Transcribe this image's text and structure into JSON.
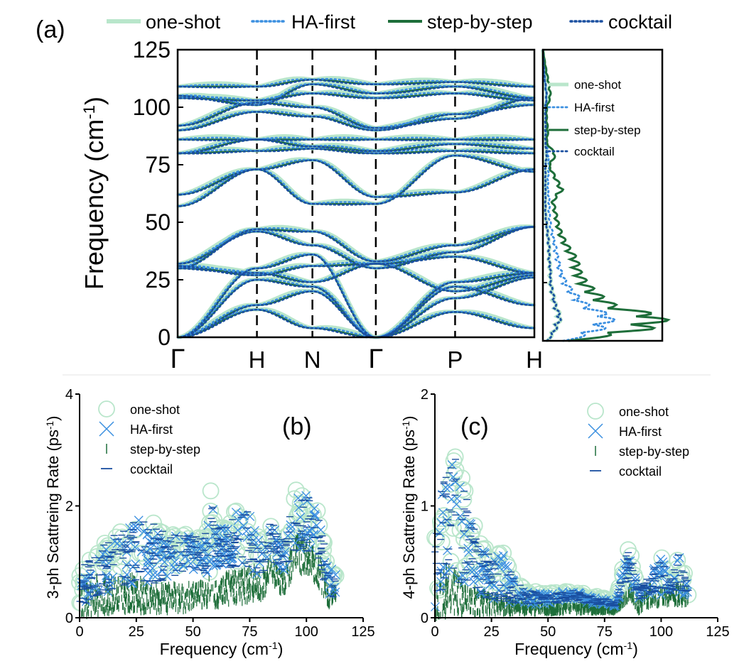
{
  "colors": {
    "one_shot": "#b9e6cb",
    "ha_first": "#3b8fe0",
    "step_by_step": "#1e6e3a",
    "cocktail": "#1a4fa0",
    "axis": "#000000"
  },
  "top_legend": {
    "panel_label": "(a)",
    "items": [
      "one-shot",
      "HA-first",
      "step-by-step",
      "cocktail"
    ]
  },
  "chart_data": [
    {
      "id": "a",
      "type": "line",
      "title": "(a)",
      "xlabel": "",
      "ylabel": "Frequency (cm",
      "ylabel_sup": "-1",
      "ylabel_close": ")",
      "ylim": [
        0,
        125
      ],
      "yticks": [
        0,
        25,
        50,
        75,
        100,
        125
      ],
      "xticks": [
        {
          "label": "Γ",
          "pos": 0,
          "serif": true
        },
        {
          "label": "H",
          "pos": 1,
          "serif": false
        },
        {
          "label": "N",
          "pos": 1.7,
          "serif": false
        },
        {
          "label": "Γ",
          "pos": 2.5,
          "serif": true
        },
        {
          "label": "P",
          "pos": 3.5,
          "serif": false
        },
        {
          "label": "H",
          "pos": 4.5,
          "serif": false
        }
      ],
      "xlim": [
        0,
        4.5
      ],
      "high_symmetry_lines": [
        1,
        1.7,
        2.5,
        3.5
      ],
      "series_names": [
        "one-shot",
        "HA-first",
        "step-by-step",
        "cocktail"
      ],
      "bands": [
        [
          0,
          12,
          4,
          0,
          11,
          4
        ],
        [
          0,
          14,
          20,
          0,
          22,
          14
        ],
        [
          0,
          25,
          22,
          0,
          17,
          26
        ],
        [
          0,
          30,
          36,
          0,
          24,
          28
        ],
        [
          32,
          46,
          40,
          30,
          37,
          48
        ],
        [
          30,
          47,
          46,
          33,
          40,
          48
        ],
        [
          31,
          27,
          31,
          32,
          35,
          28
        ],
        [
          30,
          28,
          24,
          32,
          20,
          27
        ],
        [
          57,
          73,
          77,
          61,
          63,
          73
        ],
        [
          62,
          73,
          58,
          58,
          79,
          72
        ],
        [
          80,
          81,
          82,
          80,
          81,
          80
        ],
        [
          80,
          86,
          83,
          81,
          84,
          82
        ],
        [
          86,
          86,
          86,
          86,
          86,
          86
        ],
        [
          90,
          98,
          96,
          90,
          97,
          101
        ],
        [
          92,
          102,
          100,
          91,
          95,
          104
        ],
        [
          104,
          103,
          106,
          104,
          106,
          103
        ],
        [
          105,
          101,
          110,
          106,
          109,
          104
        ],
        [
          109,
          109,
          112,
          110,
          111,
          109
        ]
      ]
    },
    {
      "id": "dos",
      "type": "line",
      "title": "",
      "legend": [
        "one-shot",
        "HA-first",
        "step-by-step",
        "cocktail"
      ],
      "ylim": [
        0,
        125
      ],
      "xlim": [
        0,
        1
      ],
      "freq": [
        0,
        5,
        10,
        15,
        20,
        25,
        30,
        35,
        40,
        45,
        50,
        55,
        60,
        65,
        70,
        75,
        80,
        85,
        90,
        95,
        100,
        105,
        110,
        115,
        125
      ],
      "series": [
        {
          "name": "one-shot",
          "values": [
            0.04,
            0.1,
            0.14,
            0.1,
            0.08,
            0.06,
            0.06,
            0.05,
            0.05,
            0.04,
            0.03,
            0.02,
            0.02,
            0.02,
            0.02,
            0.02,
            0.03,
            0.02,
            0.02,
            0.02,
            0.02,
            0.03,
            0.02,
            0.01,
            0
          ]
        },
        {
          "name": "HA-first",
          "values": [
            0.2,
            0.45,
            0.55,
            0.35,
            0.25,
            0.18,
            0.14,
            0.12,
            0.1,
            0.08,
            0.06,
            0.05,
            0.05,
            0.04,
            0.04,
            0.05,
            0.04,
            0.03,
            0.03,
            0.03,
            0.02,
            0.03,
            0.02,
            0.01,
            0
          ]
        },
        {
          "name": "step-by-step",
          "values": [
            0.25,
            0.8,
            0.95,
            0.55,
            0.42,
            0.33,
            0.28,
            0.26,
            0.2,
            0.15,
            0.12,
            0.1,
            0.08,
            0.15,
            0.1,
            0.05,
            0.1,
            0.03,
            0.04,
            0.03,
            0.03,
            0.06,
            0.05,
            0.03,
            0
          ]
        },
        {
          "name": "cocktail",
          "values": [
            0.04,
            0.1,
            0.14,
            0.1,
            0.08,
            0.06,
            0.06,
            0.05,
            0.05,
            0.04,
            0.03,
            0.02,
            0.02,
            0.02,
            0.02,
            0.02,
            0.03,
            0.02,
            0.02,
            0.02,
            0.02,
            0.03,
            0.02,
            0.01,
            0
          ]
        }
      ]
    },
    {
      "id": "b",
      "type": "scatter",
      "title": "(b)",
      "xlabel": "Frequency (cm",
      "xlabel_sup": "-1",
      "xlabel_close": ")",
      "ylabel": "3-ph Scattreing Rate (ps",
      "ylabel_sup": "-1",
      "ylabel_close": ")",
      "xlim": [
        0,
        125
      ],
      "ylim": [
        0,
        4
      ],
      "xticks": [
        0,
        25,
        50,
        75,
        100,
        125
      ],
      "yticks": [
        0,
        2,
        4
      ],
      "legend": [
        "one-shot",
        "HA-first",
        "step-by-step",
        "cocktail"
      ],
      "envelope": {
        "x": [
          0,
          5,
          10,
          15,
          20,
          25,
          30,
          35,
          40,
          45,
          50,
          55,
          58,
          60,
          65,
          70,
          75,
          80,
          85,
          90,
          95,
          100,
          105,
          110,
          113
        ],
        "upper": [
          0.9,
          1.1,
          1.3,
          1.5,
          1.6,
          1.8,
          1.85,
          1.6,
          1.5,
          1.5,
          1.5,
          1.4,
          2.4,
          1.6,
          1.7,
          2.0,
          1.9,
          1.4,
          1.8,
          1.3,
          2.3,
          2.3,
          1.9,
          1.0,
          0.8
        ],
        "lower": [
          0.2,
          0.3,
          0.4,
          0.5,
          0.5,
          0.6,
          0.6,
          0.6,
          0.7,
          0.8,
          0.8,
          0.8,
          0.8,
          0.9,
          0.9,
          0.9,
          0.8,
          0.7,
          1.0,
          0.8,
          1.2,
          1.2,
          1.0,
          0.3,
          0.4
        ],
        "step_upper": [
          0.5,
          0.7,
          0.8,
          0.7,
          0.7,
          0.8,
          0.6,
          0.6,
          0.6,
          0.6,
          0.6,
          0.7,
          0.8,
          0.6,
          0.8,
          0.8,
          0.9,
          0.9,
          1.1,
          0.8,
          1.5,
          1.5,
          1.2,
          0.6,
          0.5
        ],
        "step_lower": [
          0.0,
          0.05,
          0.05,
          0.1,
          0.1,
          0.1,
          0.1,
          0.1,
          0.1,
          0.1,
          0.15,
          0.2,
          0.2,
          0.2,
          0.25,
          0.25,
          0.3,
          0.3,
          0.6,
          0.4,
          0.8,
          0.8,
          0.6,
          0.2,
          0.3
        ]
      }
    },
    {
      "id": "c",
      "type": "scatter",
      "title": "(c)",
      "xlabel": "Frequency (cm",
      "xlabel_sup": "-1",
      "xlabel_close": ")",
      "ylabel": "4-ph Scattreing Rate (ps",
      "ylabel_sup": "-1",
      "ylabel_close": ")",
      "xlim": [
        0,
        125
      ],
      "ylim": [
        0,
        2
      ],
      "xticks": [
        0,
        25,
        50,
        75,
        100,
        125
      ],
      "yticks": [
        0,
        1,
        2
      ],
      "legend": [
        "one-shot",
        "HA-first",
        "step-by-step",
        "cocktail"
      ],
      "envelope": {
        "x": [
          0,
          3,
          6,
          9,
          12,
          15,
          20,
          25,
          30,
          35,
          40,
          50,
          60,
          70,
          80,
          85,
          87,
          90,
          95,
          100,
          105,
          108,
          112
        ],
        "upper": [
          0.8,
          1.2,
          1.4,
          1.45,
          1.3,
          1.0,
          0.7,
          0.55,
          0.6,
          0.35,
          0.25,
          0.22,
          0.25,
          0.2,
          0.15,
          0.65,
          0.55,
          0.25,
          0.4,
          0.55,
          0.4,
          0.6,
          0.3
        ],
        "lower": [
          0.05,
          0.2,
          0.3,
          0.35,
          0.3,
          0.3,
          0.2,
          0.15,
          0.15,
          0.12,
          0.12,
          0.12,
          0.15,
          0.12,
          0.1,
          0.35,
          0.3,
          0.15,
          0.2,
          0.2,
          0.2,
          0.2,
          0.2
        ],
        "step_upper": [
          0.3,
          0.4,
          0.5,
          0.4,
          0.35,
          0.3,
          0.25,
          0.2,
          0.2,
          0.15,
          0.15,
          0.12,
          0.12,
          0.12,
          0.1,
          0.25,
          0.3,
          0.15,
          0.3,
          0.25,
          0.25,
          0.3,
          0.25
        ],
        "step_lower": [
          0.0,
          0.0,
          0.02,
          0.05,
          0.03,
          0.03,
          0.03,
          0.04,
          0.04,
          0.04,
          0.04,
          0.04,
          0.05,
          0.05,
          0.05,
          0.15,
          0.15,
          0.05,
          0.1,
          0.12,
          0.12,
          0.12,
          0.12
        ]
      }
    }
  ]
}
